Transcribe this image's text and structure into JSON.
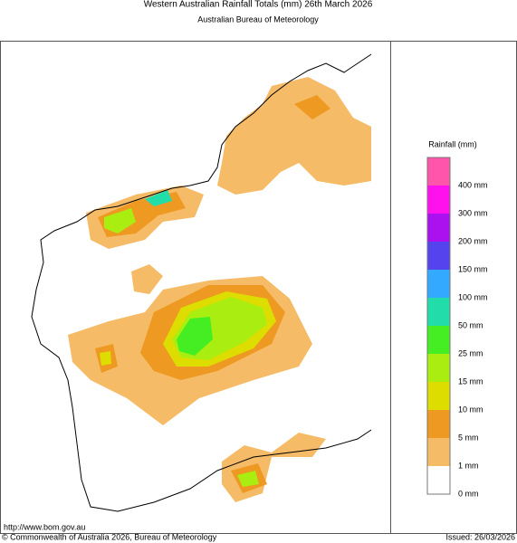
{
  "header": {
    "title": "Western Australian Rainfall Totals (mm) 26th March 2026",
    "subtitle": "Australian Bureau of Meteorology"
  },
  "legend": {
    "title": "Rainfall (mm)",
    "items": [
      {
        "color": "#ff55aa",
        "label": "400 mm"
      },
      {
        "color": "#ff11ee",
        "label": "300 mm"
      },
      {
        "color": "#aa11ee",
        "label": "200 mm"
      },
      {
        "color": "#5544ee",
        "label": "150 mm"
      },
      {
        "color": "#33aaff",
        "label": "100 mm"
      },
      {
        "color": "#22ddaa",
        "label": "50 mm"
      },
      {
        "color": "#44ee22",
        "label": "25 mm"
      },
      {
        "color": "#aaee11",
        "label": "15 mm"
      },
      {
        "color": "#dddd00",
        "label": "10 mm"
      },
      {
        "color": "#ee9922",
        "label": "5 mm"
      },
      {
        "color": "#f5bb66",
        "label": "1 mm"
      },
      {
        "color": "#ffffff",
        "label": "0 mm"
      }
    ]
  },
  "footer": {
    "url": "http://www.bom.gov.au",
    "copyright": "© Commonwealth of Australia 2026, Bureau of Meteorology",
    "issued": "Issued: 26/03/2026"
  }
}
